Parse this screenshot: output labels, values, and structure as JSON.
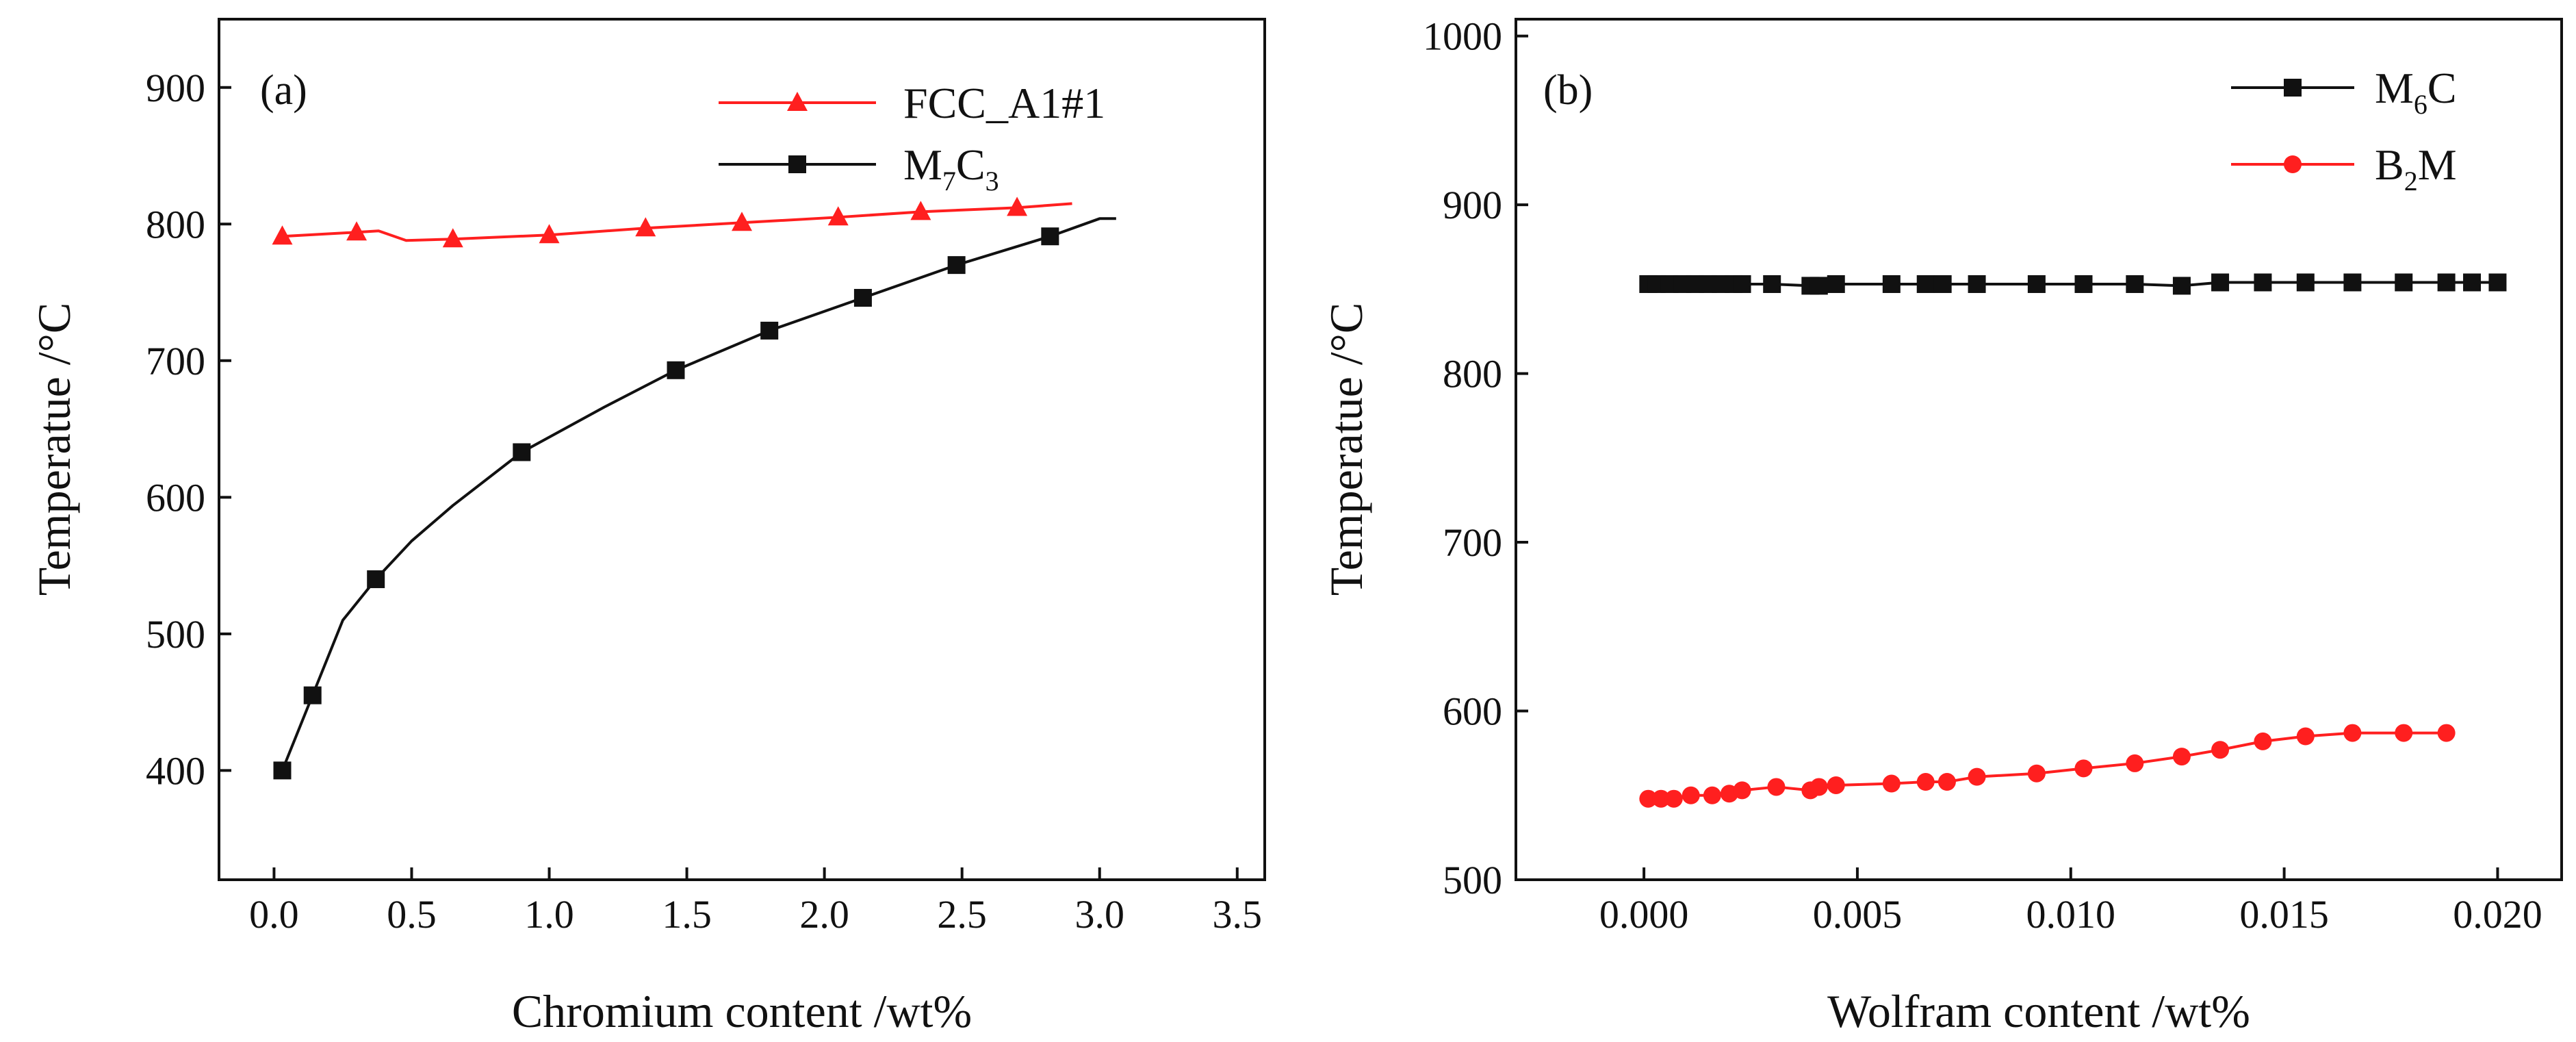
{
  "chart_data": [
    {
      "type": "line",
      "panel_label": "(a)",
      "xlabel": "Chromium content /wt%",
      "ylabel": "Temperatue /°C",
      "xlim": [
        -0.2,
        3.6
      ],
      "ylim": [
        320,
        950
      ],
      "xticks": [
        0.0,
        0.5,
        1.0,
        1.5,
        2.0,
        2.5,
        3.0,
        3.5
      ],
      "xtick_labels": [
        "0.0",
        "0.5",
        "1.0",
        "1.5",
        "2.0",
        "2.5",
        "3.0",
        "3.5"
      ],
      "yticks": [
        400,
        500,
        600,
        700,
        800,
        900
      ],
      "ytick_labels": [
        "400",
        "500",
        "600",
        "700",
        "800",
        "900"
      ],
      "legend_position": "top-right",
      "series": [
        {
          "name": "FCC_A1#1",
          "legend_main": "FCC_A1#1",
          "legend_sub1": "",
          "legend_mid": "",
          "legend_sub2": "",
          "legend_end": "",
          "color": "#ff1f1f",
          "marker": "triangle",
          "line_x": [
            0.03,
            0.3,
            0.38,
            0.48,
            0.65,
            1.0,
            1.35,
            1.7,
            2.05,
            2.35,
            2.7,
            2.9
          ],
          "line_y": [
            791,
            794,
            795,
            788,
            789,
            792,
            797,
            801,
            805,
            809,
            812,
            815
          ],
          "marker_x": [
            0.03,
            0.3,
            0.65,
            1.0,
            1.35,
            1.7,
            2.05,
            2.35,
            2.7
          ],
          "marker_y": [
            791,
            794,
            789,
            792,
            797,
            801,
            805,
            809,
            812
          ]
        },
        {
          "name": "M7C3",
          "legend_main": "M",
          "legend_sub1": "7",
          "legend_mid": "C",
          "legend_sub2": "3",
          "legend_end": "",
          "color": "#111111",
          "marker": "square",
          "line_x": [
            0.03,
            0.14,
            0.25,
            0.37,
            0.5,
            0.65,
            0.9,
            1.2,
            1.46,
            1.8,
            2.14,
            2.48,
            2.82,
            3.0,
            3.06
          ],
          "line_y": [
            400,
            455,
            510,
            540,
            568,
            594,
            633,
            666,
            693,
            722,
            746,
            770,
            791,
            804,
            804
          ],
          "marker_x": [
            0.03,
            0.14,
            0.37,
            0.9,
            1.46,
            1.8,
            2.14,
            2.48,
            2.82
          ],
          "marker_y": [
            400,
            455,
            540,
            633,
            693,
            722,
            746,
            770,
            791
          ]
        }
      ]
    },
    {
      "type": "line",
      "panel_label": "(b)",
      "xlabel": "Wolfram content /wt%",
      "ylabel": "Temperatue /°C",
      "xlim": [
        -0.003,
        0.0215
      ],
      "ylim": [
        500,
        1010
      ],
      "xticks": [
        0.0,
        0.005,
        0.01,
        0.015,
        0.02
      ],
      "xtick_labels": [
        "0.000",
        "0.005",
        "0.010",
        "0.015",
        "0.020"
      ],
      "yticks": [
        500,
        600,
        700,
        800,
        900,
        1000
      ],
      "ytick_labels": [
        "500",
        "600",
        "700",
        "800",
        "900",
        "1000"
      ],
      "legend_position": "top-right",
      "series": [
        {
          "name": "M6C",
          "legend_main": "M",
          "legend_sub1": "6",
          "legend_mid": "C",
          "legend_sub2": "",
          "legend_end": "",
          "color": "#111111",
          "marker": "square",
          "line_x": [
            0.0001,
            0.0003,
            0.0006,
            0.0009,
            0.0012,
            0.0015,
            0.0018,
            0.0021,
            0.0023,
            0.003,
            0.0039,
            0.0041,
            0.0045,
            0.0058,
            0.0066,
            0.007,
            0.0078,
            0.0092,
            0.0103,
            0.0115,
            0.0126,
            0.0135,
            0.0145,
            0.0155,
            0.0166,
            0.0178,
            0.0188,
            0.0194,
            0.02
          ],
          "line_y": [
            853,
            853,
            853,
            853,
            853,
            853,
            853,
            853,
            853,
            853,
            852,
            852,
            853,
            853,
            853,
            853,
            853,
            853,
            853,
            853,
            852,
            854,
            854,
            854,
            854,
            854,
            854,
            854,
            854
          ],
          "marker_x": [
            0.0001,
            0.0003,
            0.0006,
            0.0009,
            0.0012,
            0.0015,
            0.0018,
            0.0021,
            0.0023,
            0.003,
            0.0039,
            0.0041,
            0.0045,
            0.0058,
            0.0066,
            0.007,
            0.0078,
            0.0092,
            0.0103,
            0.0115,
            0.0126,
            0.0135,
            0.0145,
            0.0155,
            0.0166,
            0.0178,
            0.0188,
            0.0194,
            0.02
          ],
          "marker_y": [
            853,
            853,
            853,
            853,
            853,
            853,
            853,
            853,
            853,
            853,
            852,
            852,
            853,
            853,
            853,
            853,
            853,
            853,
            853,
            853,
            852,
            854,
            854,
            854,
            854,
            854,
            854,
            854,
            854
          ]
        },
        {
          "name": "B2M",
          "legend_main": "B",
          "legend_sub1": "2",
          "legend_mid": "M",
          "legend_sub2": "",
          "legend_end": "",
          "color": "#ff1f1f",
          "marker": "circle",
          "line_x": [
            0.0001,
            0.0004,
            0.0007,
            0.0011,
            0.0016,
            0.002,
            0.0023,
            0.0031,
            0.0039,
            0.0041,
            0.0045,
            0.0058,
            0.0066,
            0.0071,
            0.0078,
            0.0092,
            0.0103,
            0.0115,
            0.0126,
            0.0135,
            0.0145,
            0.0155,
            0.0166,
            0.0178,
            0.0188
          ],
          "line_y": [
            548,
            548,
            548,
            550,
            550,
            551,
            553,
            555,
            553,
            555,
            556,
            557,
            558,
            558,
            561,
            563,
            566,
            569,
            573,
            577,
            582,
            585,
            587,
            587,
            587
          ],
          "marker_x": [
            0.0001,
            0.0004,
            0.0007,
            0.0011,
            0.0016,
            0.002,
            0.0023,
            0.0031,
            0.0039,
            0.0041,
            0.0045,
            0.0058,
            0.0066,
            0.0071,
            0.0078,
            0.0092,
            0.0103,
            0.0115,
            0.0126,
            0.0135,
            0.0145,
            0.0155,
            0.0166,
            0.0178,
            0.0188
          ],
          "marker_y": [
            548,
            548,
            548,
            550,
            550,
            551,
            553,
            555,
            553,
            555,
            556,
            557,
            558,
            558,
            561,
            563,
            566,
            569,
            573,
            577,
            582,
            585,
            587,
            587,
            587
          ]
        }
      ]
    }
  ]
}
